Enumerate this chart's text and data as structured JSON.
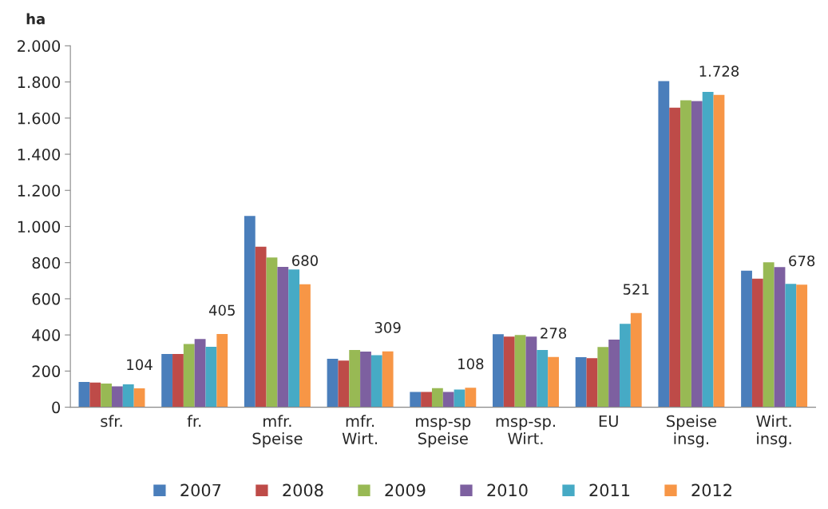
{
  "chart_data": {
    "type": "bar",
    "ylabel": "ha",
    "categories": [
      "sfr.",
      "fr.",
      "mfr.\nSpeise",
      "mfr.\nWirt.",
      "msp-sp\nSpeise",
      "msp-sp.\nWirt.",
      "EU",
      "Speise\ninsg.",
      "Wirt.\ninsg."
    ],
    "series": [
      {
        "name": "2007",
        "color": "#4a7ebb",
        "values": [
          140,
          294,
          1058,
          268,
          84,
          404,
          277,
          1805,
          755
        ]
      },
      {
        "name": "2008",
        "color": "#be4b48",
        "values": [
          136,
          294,
          888,
          258,
          84,
          391,
          271,
          1658,
          711
        ]
      },
      {
        "name": "2009",
        "color": "#98b954",
        "values": [
          131,
          350,
          829,
          317,
          105,
          400,
          333,
          1699,
          802
        ]
      },
      {
        "name": "2010",
        "color": "#7d60a0",
        "values": [
          115,
          377,
          777,
          308,
          84,
          391,
          374,
          1694,
          775
        ]
      },
      {
        "name": "2011",
        "color": "#46aac5",
        "values": [
          127,
          334,
          762,
          288,
          98,
          317,
          462,
          1745,
          683
        ]
      },
      {
        "name": "2012",
        "color": "#f79646",
        "values": [
          104,
          405,
          680,
          309,
          108,
          278,
          521,
          1728,
          678
        ],
        "value_labels": [
          "104",
          "405",
          "680",
          "309",
          "108",
          "278",
          "521",
          "1.728",
          "678"
        ]
      }
    ],
    "ylim": [
      0,
      2000
    ],
    "yticks": [
      0,
      200,
      400,
      600,
      800,
      {
        "value": 1000,
        "label": "1.000"
      },
      {
        "value": 1200,
        "label": "1.200"
      },
      {
        "value": 1400,
        "label": "1.400"
      },
      {
        "value": 1600,
        "label": "1.600"
      },
      {
        "value": 1800,
        "label": "1.800"
      },
      {
        "value": 2000,
        "label": "2.000"
      }
    ],
    "grid": false,
    "legend": "bottom"
  }
}
